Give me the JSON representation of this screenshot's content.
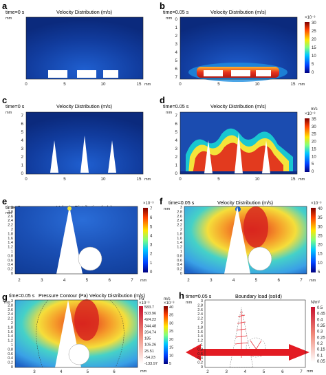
{
  "figure": {
    "panel_labels": [
      "a",
      "b",
      "c",
      "d",
      "e",
      "f",
      "g",
      "h"
    ],
    "panels": [
      {
        "id": "a",
        "time": "time=0 s",
        "title": "Velocity Distribution (m/s)",
        "y_unit": "mm",
        "x_unit": "mm",
        "xticks": [
          "0",
          "5",
          "10",
          "15"
        ],
        "yticks": []
      },
      {
        "id": "b",
        "time": "time=0.05 s",
        "title": "Velocity Distribution (m/s)",
        "y_unit": "mm",
        "x_unit": "mm",
        "xticks": [
          "0",
          "5",
          "10",
          "15"
        ],
        "yticks": [
          "0",
          "1",
          "2",
          "3",
          "4",
          "5",
          "6",
          "7"
        ],
        "colorbar": {
          "exponent": "×10⁻³",
          "unit": "",
          "ticks": [
            "30",
            "25",
            "20",
            "15",
            "10",
            "5",
            "0"
          ]
        }
      },
      {
        "id": "c",
        "time": "time=0 s",
        "title": "Velocity Distribution (m/s)",
        "y_unit": "mm",
        "x_unit": "mm",
        "xticks": [
          "0",
          "5",
          "10",
          "15"
        ],
        "yticks": [
          "0",
          "1",
          "2",
          "3",
          "4",
          "5",
          "6",
          "7"
        ]
      },
      {
        "id": "d",
        "time": "time=0.05 s",
        "title": "Velocity Distribution (m/s)",
        "y_unit": "mm",
        "x_unit": "mm",
        "xticks": [
          "0",
          "5",
          "10",
          "15"
        ],
        "yticks": [
          "0",
          "1",
          "2",
          "3",
          "4",
          "5",
          "6",
          "7"
        ],
        "colorbar": {
          "exponent": "×10⁻³",
          "unit": "m/s",
          "ticks": [
            "35",
            "30",
            "25",
            "20",
            "15",
            "10",
            "5",
            "0"
          ]
        }
      },
      {
        "id": "e",
        "time": "time=0 s",
        "title": "Velocity Distribution (m/s)",
        "y_unit": "mm",
        "x_unit": "mm",
        "xticks": [
          "2",
          "3",
          "4",
          "5",
          "6",
          "7"
        ],
        "yticks": [
          "3",
          "2.8",
          "2.6",
          "2.4",
          "2.2",
          "2",
          "1.8",
          "1.6",
          "1.4",
          "1.2",
          "1",
          "0.8",
          "0.6",
          "0.4",
          "0.2",
          "0"
        ],
        "colorbar": {
          "exponent": "×10⁻³",
          "unit": "",
          "ticks": [
            "7",
            "6",
            "5",
            "4",
            "3",
            "2",
            "1",
            "0"
          ]
        }
      },
      {
        "id": "f",
        "time": "time=0.05 s",
        "title": "Velocity Distribution (m/s)",
        "y_unit": "mm",
        "x_unit": "mm",
        "xticks": [
          "2",
          "3",
          "4",
          "5",
          "6",
          "7"
        ],
        "yticks": [
          "3",
          "2.8",
          "2.6",
          "2.4",
          "2.2",
          "2",
          "1.8",
          "1.6",
          "1.4",
          "1.2",
          "1",
          "0.8",
          "0.6",
          "0.4",
          "0.2",
          "0"
        ],
        "colorbar": {
          "exponent": "×10⁻³",
          "unit": "",
          "ticks": [
            "40",
            "35",
            "30",
            "25",
            "20",
            "15",
            "10",
            "5"
          ]
        }
      },
      {
        "id": "g",
        "time": "time=0.05 s",
        "title": "Pressure Contour (Pa) Velocity Distribution (m/s)",
        "y_unit": "mm",
        "x_unit": "mm",
        "xticks": [
          "3",
          "4",
          "5",
          "6"
        ],
        "yticks": [
          "3",
          "2.8",
          "2.6",
          "2.4",
          "2.2",
          "2",
          "1.8",
          "1.6",
          "1.4",
          "1.2",
          "1",
          "0.8",
          "0.6",
          "0.4",
          "0.2",
          "0"
        ],
        "colorbar_pa": {
          "label": "Pa",
          "exponent": "×10⁻³",
          "ticks": [
            "583.7",
            "503.96",
            "424.22",
            "344.48",
            "264.74",
            "185",
            "105.26",
            "25.51",
            "-54.23",
            "-133.97"
          ]
        },
        "colorbar": {
          "exponent": "×10⁻³",
          "unit": "m/s",
          "ticks": [
            "40",
            "35",
            "30",
            "25",
            "20",
            "15",
            "10",
            "5"
          ]
        }
      },
      {
        "id": "h",
        "time": "time=0.05 s",
        "title": "Boundary load (solid)",
        "y_unit": "mm",
        "x_unit": "mm",
        "xticks": [
          "2",
          "3",
          "4",
          "5",
          "6",
          "7"
        ],
        "yticks": [
          "3",
          "2.8",
          "2.6",
          "2.4",
          "2.2",
          "2",
          "1.8",
          "1.6",
          "1.4",
          "1.2",
          "1",
          "0.8",
          "0.6",
          "0.4",
          "0.2",
          "0"
        ],
        "colorbar": {
          "exponent": "",
          "unit": "N/m²",
          "ticks": [
            "0.5",
            "0.45",
            "0.4",
            "0.35",
            "0.3",
            "0.25",
            "0.2",
            "0.15",
            "0.1",
            "0.05"
          ]
        }
      }
    ]
  },
  "colors": {
    "low": "#0a1f7a",
    "mid": "#19c7d0",
    "yellow": "#f4e43a",
    "high": "#d7261e",
    "arrow": "#e31b23"
  }
}
